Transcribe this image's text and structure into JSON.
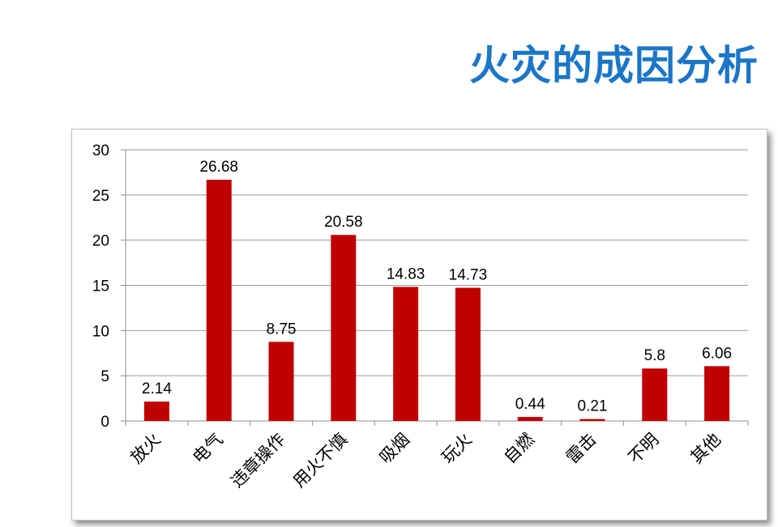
{
  "slide": {
    "title": "火灾的成因分析"
  },
  "colors": {
    "title": "#1b76c7",
    "bar": "#c00000",
    "grid": "#9a9a9a"
  },
  "chart_data": {
    "type": "bar",
    "categories": [
      "放火",
      "电气",
      "违章操作",
      "用火不慎",
      "吸烟",
      "玩火",
      "自燃",
      "雷击",
      "不明",
      "其他"
    ],
    "values": [
      2.14,
      26.68,
      8.75,
      20.58,
      14.83,
      14.73,
      0.44,
      0.21,
      5.8,
      6.06
    ],
    "value_labels": [
      "2.14",
      "26.68",
      "8.75",
      "20.58",
      "14.83",
      "14.73",
      "0.44",
      "0.21",
      "5.8",
      "6.06"
    ],
    "ylim": [
      0,
      30
    ],
    "yticks": [
      "0",
      "5",
      "10",
      "15",
      "20",
      "25",
      "30"
    ],
    "grid": true,
    "legend": "none",
    "xlabel": "",
    "ylabel": ""
  }
}
